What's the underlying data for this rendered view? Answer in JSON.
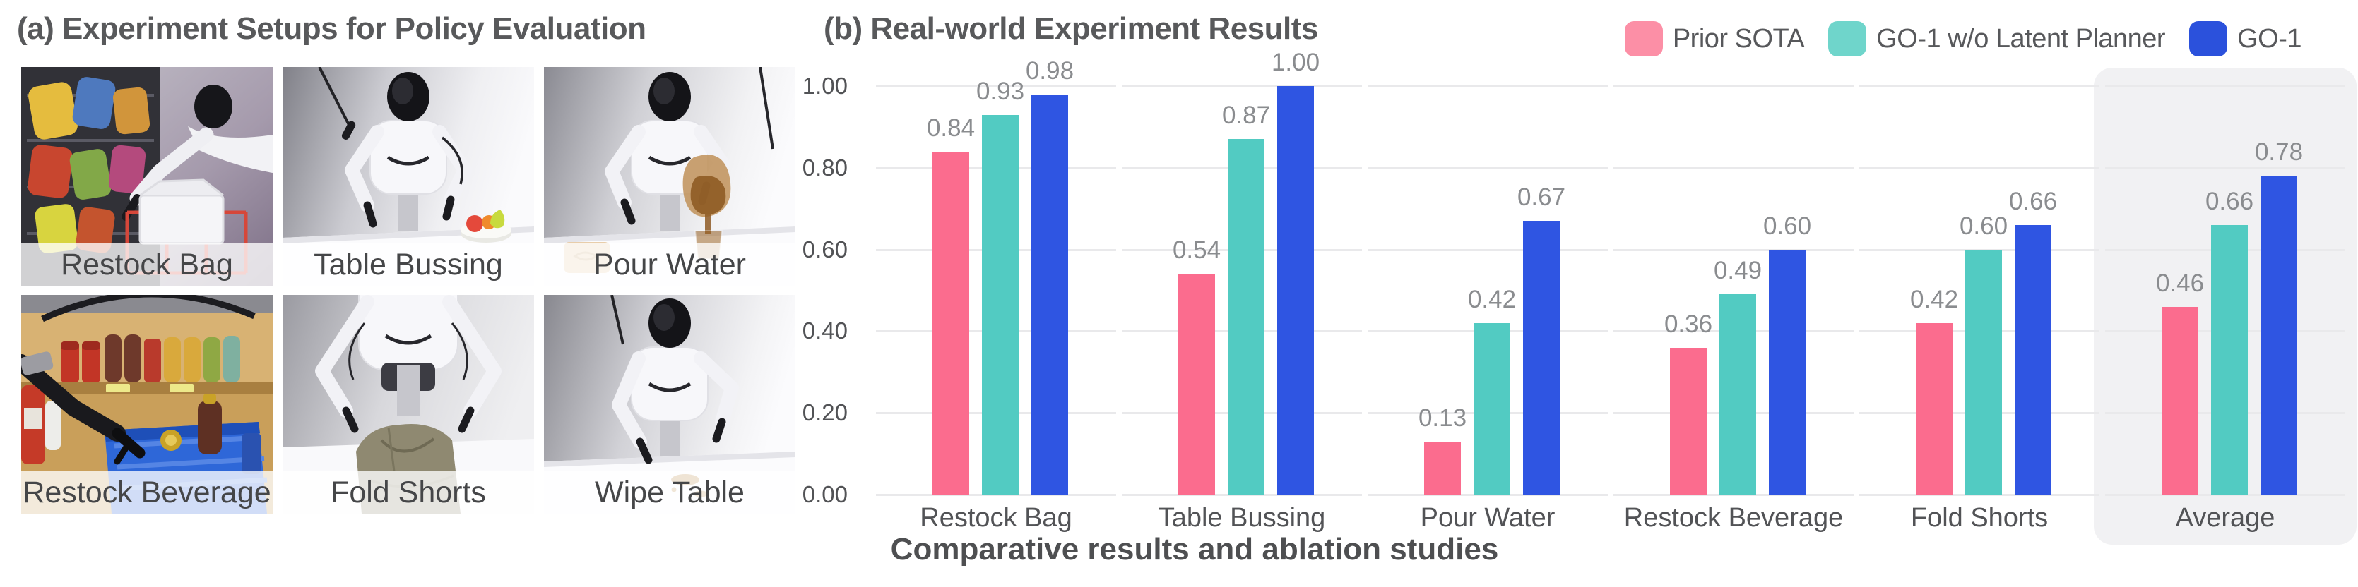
{
  "figure": {
    "panel_a": {
      "title": "(a) Experiment Setups for Policy Evaluation",
      "tiles": [
        {
          "label": "Restock Bag"
        },
        {
          "label": "Table Bussing"
        },
        {
          "label": "Pour Water"
        },
        {
          "label": "Restock Beverage"
        },
        {
          "label": "Fold Shorts"
        },
        {
          "label": "Wipe Table"
        }
      ]
    },
    "panel_b": {
      "title": "(b) Real-world Experiment Results",
      "caption": "Comparative results and ablation studies",
      "legend": [
        {
          "label": "Prior SOTA",
          "color": "#FC8FA6"
        },
        {
          "label": "GO-1 w/o Latent Planner",
          "color": "#6FD5CB"
        },
        {
          "label": "GO-1",
          "color": "#2B51DC"
        }
      ]
    }
  },
  "chart_data": {
    "type": "bar",
    "title": "(b) Real-world Experiment Results",
    "categories": [
      "Restock Bag",
      "Table Bussing",
      "Pour Water",
      "Restock Beverage",
      "Fold Shorts",
      "Average"
    ],
    "series": [
      {
        "name": "Prior SOTA",
        "color": "#FB6C8E",
        "values": [
          0.84,
          0.54,
          0.13,
          0.36,
          0.42,
          0.46
        ]
      },
      {
        "name": "GO-1 w/o Latent Planner",
        "color": "#52CBC2",
        "values": [
          0.93,
          0.87,
          0.42,
          0.49,
          0.6,
          0.66
        ]
      },
      {
        "name": "GO-1",
        "color": "#2F55E2",
        "values": [
          0.98,
          1.0,
          0.67,
          0.6,
          0.66,
          0.78
        ]
      }
    ],
    "xlabel": "",
    "ylabel": "",
    "ylim": [
      0.0,
      1.0
    ],
    "yticks": [
      "0.00",
      "0.20",
      "0.40",
      "0.60",
      "0.80",
      "1.00"
    ],
    "grid": true,
    "gridline_color": "#E9E9EB",
    "legend_position": "top-right",
    "highlighted_category": "Average",
    "highlight_color": "#F1F1F3",
    "value_labels": "2dp"
  }
}
